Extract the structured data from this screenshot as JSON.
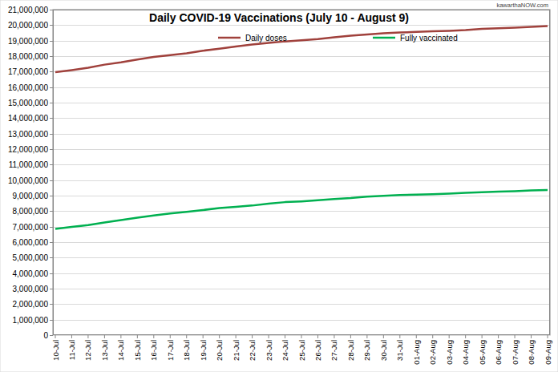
{
  "chart_data": {
    "type": "line",
    "title": "Daily COVID-19 Vaccinations (July 10 - August 9)",
    "annotations": [
      "kawarthaNOW.com"
    ],
    "categories": [
      "10-Jul",
      "11-Jul",
      "12-Jul",
      "13-Jul",
      "14-Jul",
      "15-Jul",
      "16-Jul",
      "17-Jul",
      "18-Jul",
      "19-Jul",
      "20-Jul",
      "21-Jul",
      "22-Jul",
      "23-Jul",
      "24-Jul",
      "25-Jul",
      "26-Jul",
      "27-Jul",
      "28-Jul",
      "29-Jul",
      "30-Jul",
      "31-Jul",
      "01-Aug",
      "02-Aug",
      "03-Aug",
      "04-Aug",
      "05-Aug",
      "06-Aug",
      "07-Aug",
      "08-Aug",
      "09-Aug"
    ],
    "series": [
      {
        "name": "Daily doses",
        "color": "#a0413c",
        "values": [
          16970000,
          17100000,
          17250000,
          17450000,
          17600000,
          17780000,
          17950000,
          18070000,
          18180000,
          18350000,
          18480000,
          18620000,
          18750000,
          18850000,
          18950000,
          19020000,
          19100000,
          19220000,
          19320000,
          19400000,
          19480000,
          19520000,
          19560000,
          19600000,
          19630000,
          19680000,
          19760000,
          19800000,
          19840000,
          19890000,
          19940000
        ]
      },
      {
        "name": "Fully vaccinated",
        "color": "#00b050",
        "values": [
          6850000,
          6980000,
          7100000,
          7270000,
          7420000,
          7580000,
          7720000,
          7850000,
          7950000,
          8070000,
          8200000,
          8280000,
          8360000,
          8480000,
          8580000,
          8630000,
          8700000,
          8780000,
          8840000,
          8930000,
          8990000,
          9040000,
          9070000,
          9090000,
          9130000,
          9180000,
          9220000,
          9260000,
          9290000,
          9330000,
          9360000
        ]
      }
    ],
    "ylim": [
      0,
      21000000
    ],
    "yticks": [
      0,
      {
        "value": 1000000,
        "label": "1,000,000"
      },
      {
        "value": 2000000,
        "label": "2,000,000"
      },
      {
        "value": 3000000,
        "label": "3,000,000"
      },
      {
        "value": 4000000,
        "label": "4,000,000"
      },
      {
        "value": 5000000,
        "label": "5,000,000"
      },
      {
        "value": 6000000,
        "label": "6,000,000"
      },
      {
        "value": 7000000,
        "label": "7,000,000"
      },
      {
        "value": 8000000,
        "label": "8,000,000"
      },
      {
        "value": 9000000,
        "label": "9,000,000"
      },
      {
        "value": 10000000,
        "label": "10,000,000"
      },
      {
        "value": 11000000,
        "label": "11,000,000"
      },
      {
        "value": 12000000,
        "label": "12,000,000"
      },
      {
        "value": 13000000,
        "label": "13,000,000"
      },
      {
        "value": 14000000,
        "label": "14,000,000"
      },
      {
        "value": 15000000,
        "label": "15,000,000"
      },
      {
        "value": 16000000,
        "label": "16,000,000"
      },
      {
        "value": 17000000,
        "label": "17,000,000"
      },
      {
        "value": 18000000,
        "label": "18,000,000"
      },
      {
        "value": 19000000,
        "label": "19,000,000"
      },
      {
        "value": 20000000,
        "label": "20,000,000"
      },
      {
        "value": 21000000,
        "label": "21,000,000"
      }
    ],
    "grid": true,
    "legend": "top"
  }
}
